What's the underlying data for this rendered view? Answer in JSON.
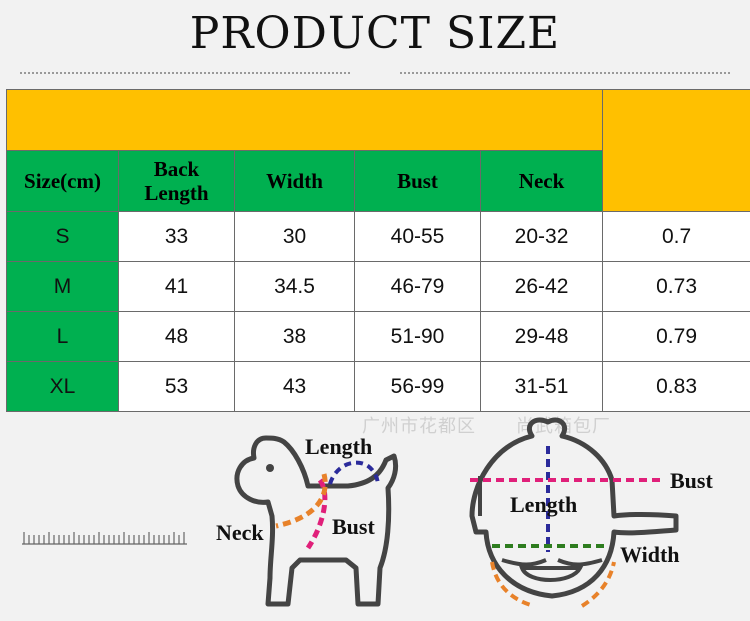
{
  "title": "PRODUCT SIZE",
  "table": {
    "headers": [
      "Size(cm)",
      "Back Length",
      "Width",
      "Bust",
      "Neck",
      ""
    ],
    "rows": [
      {
        "size": "S",
        "back": "33",
        "width": "30",
        "bust": "40-55",
        "neck": "20-32",
        "extra": "0.7"
      },
      {
        "size": "M",
        "back": "41",
        "width": "34.5",
        "bust": "46-79",
        "neck": "26-42",
        "extra": "0.73"
      },
      {
        "size": "L",
        "back": "48",
        "width": "38",
        "bust": "51-90",
        "neck": "29-48",
        "extra": "0.79"
      },
      {
        "size": "XL",
        "back": "53",
        "width": "43",
        "bust": "56-99",
        "neck": "31-51",
        "extra": "0.83"
      }
    ]
  },
  "watermark": "广州市花都区",
  "watermark_tail": "尚武箱包厂",
  "dog_labels": {
    "length": "Length",
    "neck": "Neck",
    "bust": "Bust"
  },
  "harness_labels": {
    "bust": "Bust",
    "length": "Length",
    "width": "Width"
  },
  "colors": {
    "gold": "#ffc000",
    "green": "#00b050",
    "length_line": "#2b2b9b",
    "neck_line": "#e8822a",
    "bust_line": "#e0207a",
    "width_line": "#2e7d1f"
  },
  "icons": [
    "dog-outline-icon",
    "harness-outline-icon",
    "ruler-icon"
  ]
}
